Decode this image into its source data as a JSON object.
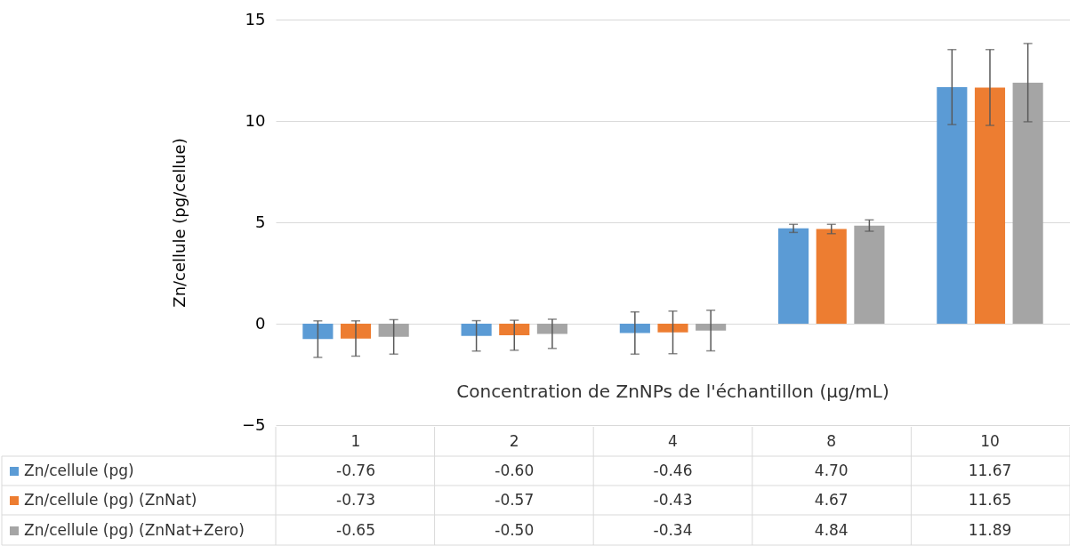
{
  "chart_data": {
    "type": "bar",
    "xlabel": "Concentration de ZnNPs de l'échantillon (µg/mL)",
    "ylabel": "Zn/cellule   (pg/cellue)",
    "categories": [
      "1",
      "2",
      "4",
      "8",
      "10"
    ],
    "ylim": [
      -5,
      15
    ],
    "yticks": [
      -5,
      0,
      5,
      10,
      15
    ],
    "grid": "y",
    "legend": "bottom",
    "series": [
      {
        "name": "Zn/cellule (pg)",
        "color": "#5b9bd5",
        "values": [
          -0.76,
          -0.6,
          -0.46,
          4.7,
          11.67
        ],
        "value_labels": [
          "-0.76",
          "-0.60",
          "-0.46",
          "4.70",
          "11.67"
        ],
        "errors": [
          0.9,
          0.75,
          1.04,
          0.2,
          1.85
        ]
      },
      {
        "name": "Zn/cellule (pg) (ZnNat)",
        "color": "#ed7d31",
        "values": [
          -0.73,
          -0.57,
          -0.43,
          4.67,
          11.65
        ],
        "value_labels": [
          "-0.73",
          "-0.57",
          "-0.43",
          "4.67",
          "11.65"
        ],
        "errors": [
          0.87,
          0.74,
          1.05,
          0.23,
          1.87
        ]
      },
      {
        "name": "Zn/cellule (pg) (ZnNat+Zero)",
        "color": "#a5a5a5",
        "values": [
          -0.65,
          -0.5,
          -0.34,
          4.84,
          11.89
        ],
        "value_labels": [
          "-0.65",
          "-0.50",
          "-0.34",
          "4.84",
          "11.89"
        ],
        "errors": [
          0.85,
          0.72,
          1.0,
          0.28,
          1.93
        ]
      }
    ]
  }
}
